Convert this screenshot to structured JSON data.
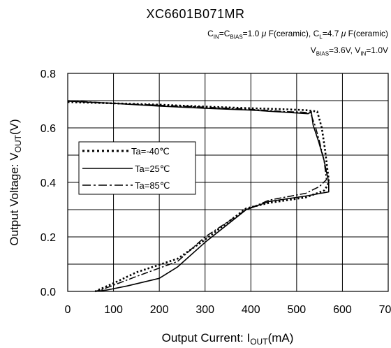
{
  "chart_data": {
    "type": "line",
    "title": "XC6601B071MR",
    "conditions_line1": "CIN=CBIAS=1.0 μF(ceramic), CL=4.7 μF(ceramic)",
    "conditions_line2": "VBIAS=3.6V, VIN=1.0V",
    "xlabel": "Output Current: IOUT(mA)",
    "ylabel": "Output Voltage: VOUT(V)",
    "xlim": [
      0,
      700
    ],
    "ylim": [
      0,
      0.8
    ],
    "xticks": [
      "0",
      "100",
      "200",
      "300",
      "400",
      "500",
      "600",
      "700"
    ],
    "yticks": [
      "0.0",
      "0.2",
      "0.4",
      "0.6",
      "0.8"
    ],
    "grid": true,
    "legend_position": "left-middle",
    "series": [
      {
        "name": "Ta=-40℃",
        "style": "dotted",
        "x": [
          0,
          100,
          200,
          300,
          400,
          480,
          520,
          545,
          555,
          562,
          567,
          570,
          568,
          560,
          520,
          440,
          390,
          300,
          240,
          150,
          100,
          60
        ],
        "y": [
          0.695,
          0.69,
          0.685,
          0.678,
          0.672,
          0.668,
          0.665,
          0.66,
          0.6,
          0.52,
          0.45,
          0.41,
          0.39,
          0.37,
          0.345,
          0.325,
          0.305,
          0.19,
          0.12,
          0.07,
          0.03,
          0.0
        ]
      },
      {
        "name": "Ta=25℃",
        "style": "solid",
        "x": [
          0,
          100,
          200,
          300,
          400,
          480,
          525,
          532,
          536,
          548,
          560,
          570,
          570,
          520,
          440,
          390,
          300,
          240,
          200,
          130,
          85,
          60
        ],
        "y": [
          0.698,
          0.69,
          0.68,
          0.672,
          0.665,
          0.657,
          0.652,
          0.66,
          0.61,
          0.55,
          0.48,
          0.4,
          0.365,
          0.35,
          0.33,
          0.3,
          0.18,
          0.09,
          0.048,
          0.02,
          0.005,
          0.0
        ]
      },
      {
        "name": "Ta=85℃",
        "style": "dashdot",
        "x": [
          0,
          100,
          200,
          300,
          400,
          470,
          510,
          530,
          540,
          550,
          560,
          565,
          550,
          520,
          440,
          390,
          300,
          240,
          150,
          80,
          60
        ],
        "y": [
          0.7,
          0.69,
          0.683,
          0.676,
          0.668,
          0.66,
          0.658,
          0.655,
          0.61,
          0.55,
          0.48,
          0.41,
          0.385,
          0.36,
          0.335,
          0.3,
          0.2,
          0.11,
          0.055,
          0.01,
          0.0
        ]
      }
    ]
  }
}
